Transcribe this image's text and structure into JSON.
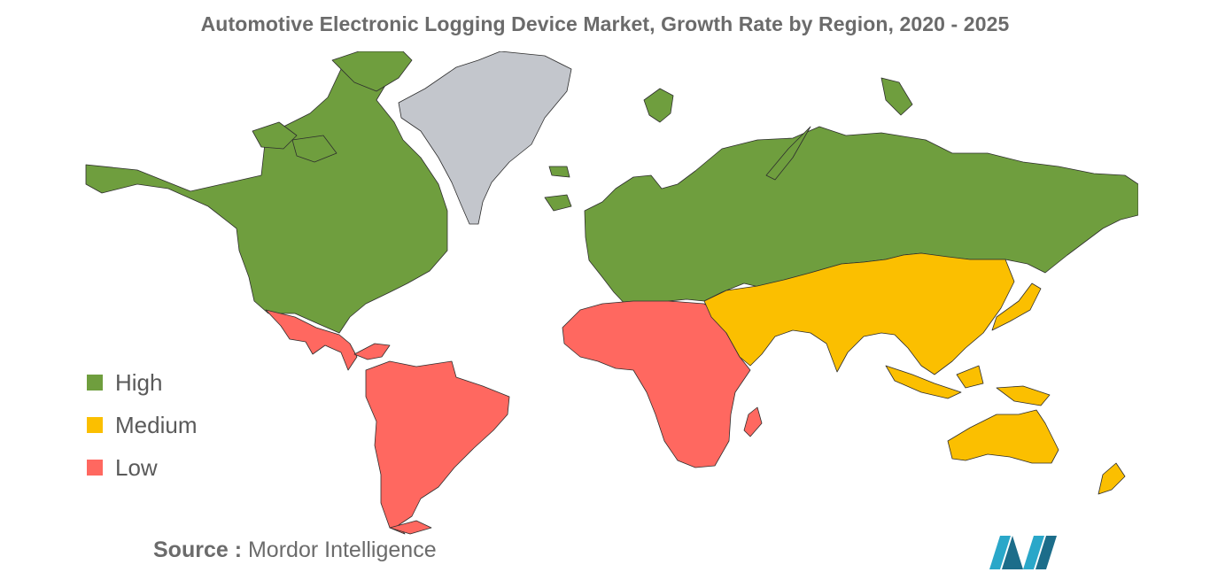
{
  "title": "Automotive Electronic Logging Device Market, Growth Rate by Region, 2020 - 2025",
  "legend": [
    {
      "label": "High",
      "color": "#6f9e3e"
    },
    {
      "label": "Medium",
      "color": "#fbbf00"
    },
    {
      "label": "Low",
      "color": "#ff6860"
    }
  ],
  "no_data_color": "#c3c6cc",
  "regions": {
    "north_america": "High",
    "europe_russia": "High",
    "latin_america": "Low",
    "africa": "Low",
    "middle_east_asia_oceania": "Medium",
    "greenland": "none"
  },
  "source": {
    "prefix": "Source :",
    "text": "Mordor Intelligence"
  },
  "logo_icon": "mordor-intelligence-logo"
}
